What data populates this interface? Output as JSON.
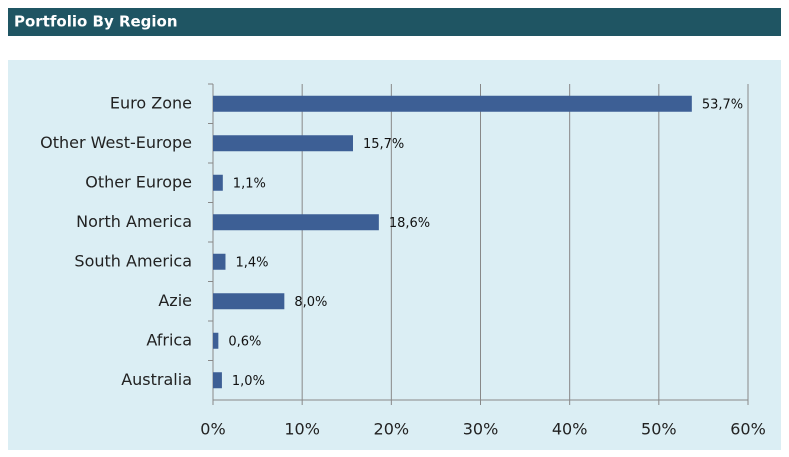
{
  "chart_data": {
    "type": "bar",
    "title": "Portfolio By Region",
    "categories": [
      "Euro Zone",
      "Other West-Europe",
      "Other Europe",
      "North America",
      "South America",
      "Azie",
      "Africa",
      "Australia"
    ],
    "values": [
      53.7,
      15.7,
      1.1,
      18.6,
      1.4,
      8.0,
      0.6,
      1.0
    ],
    "value_labels": [
      "53,7%",
      "15,7%",
      "1,1%",
      "18,6%",
      "1,4%",
      "8,0%",
      "0,6%",
      "1,0%"
    ],
    "color": "#3d5f95",
    "xlim": [
      0,
      60
    ],
    "xticks": [
      {
        "value": 0,
        "label": "0%"
      },
      {
        "value": 10,
        "label": "10%"
      },
      {
        "value": 20,
        "label": "20%"
      },
      {
        "value": 30,
        "label": "30%"
      },
      {
        "value": 40,
        "label": "40%"
      },
      {
        "value": 50,
        "label": "50%"
      },
      {
        "value": 60,
        "label": "60%"
      }
    ],
    "grid": true
  }
}
